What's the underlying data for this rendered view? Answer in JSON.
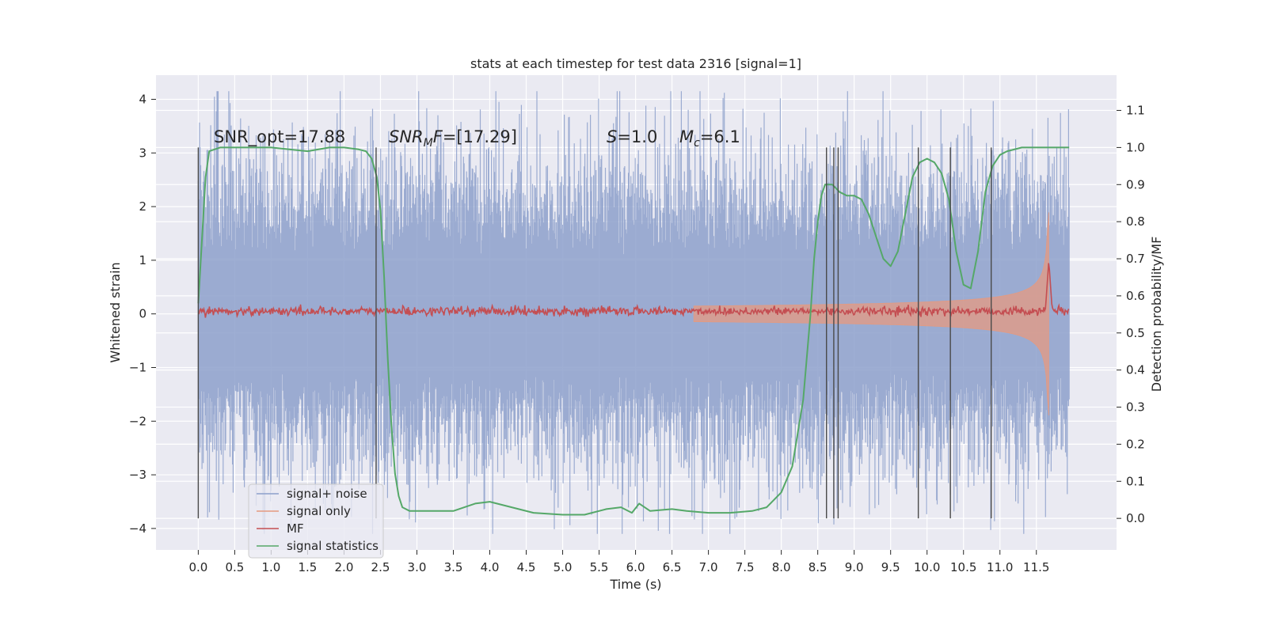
{
  "chart_data": {
    "type": "line",
    "title": "stats at each timestep for test data 2316 [signal=1]",
    "xlabel": "Time (s)",
    "ylabel": "Whitened strain",
    "y2label": "Detection probability/MF",
    "xlim": [
      -0.58,
      12.6
    ],
    "ylim": [
      -4.4,
      4.45
    ],
    "y2lim": [
      -0.085,
      1.195
    ],
    "xticks": [
      0.0,
      0.5,
      1.0,
      1.5,
      2.0,
      2.5,
      3.0,
      3.5,
      4.0,
      4.5,
      5.0,
      5.5,
      6.0,
      6.5,
      7.0,
      7.5,
      8.0,
      8.5,
      9.0,
      9.5,
      10.0,
      10.5,
      11.0,
      11.5
    ],
    "xtick_labels": [
      "0.0",
      "0.5",
      "1.0",
      "1.5",
      "2.0",
      "2.5",
      "3.0",
      "3.5",
      "4.0",
      "4.5",
      "5.0",
      "5.5",
      "6.0",
      "6.5",
      "7.0",
      "7.5",
      "8.0",
      "8.5",
      "9.0",
      "9.5",
      "10.0",
      "10.5",
      "11.0",
      "11.5"
    ],
    "yticks": [
      -4,
      -3,
      -2,
      -1,
      0,
      1,
      2,
      3,
      4
    ],
    "ytick_labels": [
      "−4",
      "−3",
      "−2",
      "−1",
      "0",
      "1",
      "2",
      "3",
      "4"
    ],
    "y2ticks": [
      0.0,
      0.1,
      0.2,
      0.3,
      0.4,
      0.5,
      0.6,
      0.7,
      0.8,
      0.9,
      1.0,
      1.1
    ],
    "y2tick_labels": [
      "0.0",
      "0.1",
      "0.2",
      "0.3",
      "0.4",
      "0.5",
      "0.6",
      "0.7",
      "0.8",
      "0.9",
      "1.0",
      "1.1"
    ],
    "grid": true,
    "legend_position": "bottom-left",
    "annotations": {
      "snr_opt": "SNR_opt=17.88",
      "snr_mf_sym": "SNR",
      "snr_mf_sub": "M",
      "snr_mf_sym2": "F",
      "snr_mf_val": "=[17.29]",
      "s_sym": "S",
      "s_val": "=1.0",
      "mc_sym": "M",
      "mc_sub": "c",
      "mc_val": "=6.1"
    },
    "series": [
      {
        "name": "signal+ noise",
        "color": "#8da0cb",
        "kind": "noise",
        "t_start": 0.0,
        "t_end": 11.95,
        "sigma": 1.05
      },
      {
        "name": "signal only",
        "color": "#e59a80",
        "kind": "chirp",
        "t_start": 6.8,
        "t_merge": 11.67,
        "amp_start": 0.02,
        "amp_peak": 2.1
      },
      {
        "name": "MF",
        "color": "#c44e52",
        "kind": "mf",
        "t_start": 0.0,
        "t_end": 11.95,
        "baseline": 0.05,
        "peak_t": 11.67,
        "peak_y": 1.0
      },
      {
        "name": "signal statistics",
        "color": "#55a868",
        "kind": "stat",
        "axis": "right",
        "x": [
          0.0,
          0.05,
          0.1,
          0.15,
          0.3,
          0.6,
          1.0,
          1.5,
          1.8,
          2.0,
          2.2,
          2.3,
          2.38,
          2.45,
          2.5,
          2.55,
          2.6,
          2.65,
          2.7,
          2.75,
          2.8,
          2.9,
          3.0,
          3.2,
          3.5,
          3.8,
          4.0,
          4.3,
          4.6,
          5.0,
          5.3,
          5.6,
          5.8,
          5.95,
          6.05,
          6.2,
          6.5,
          6.7,
          7.0,
          7.3,
          7.6,
          7.8,
          8.0,
          8.15,
          8.3,
          8.4,
          8.45,
          8.5,
          8.55,
          8.6,
          8.7,
          8.8,
          8.9,
          9.0,
          9.1,
          9.2,
          9.3,
          9.4,
          9.5,
          9.6,
          9.7,
          9.8,
          9.9,
          10.0,
          10.1,
          10.2,
          10.3,
          10.4,
          10.5,
          10.6,
          10.7,
          10.8,
          10.9,
          11.0,
          11.1,
          11.3,
          11.6,
          11.95
        ],
        "y": [
          0.58,
          0.75,
          0.92,
          0.99,
          1.0,
          1.0,
          1.0,
          0.99,
          1.0,
          1.0,
          0.995,
          0.99,
          0.97,
          0.92,
          0.83,
          0.65,
          0.43,
          0.25,
          0.12,
          0.06,
          0.03,
          0.02,
          0.02,
          0.02,
          0.02,
          0.04,
          0.045,
          0.03,
          0.015,
          0.01,
          0.01,
          0.025,
          0.03,
          0.015,
          0.04,
          0.02,
          0.025,
          0.02,
          0.015,
          0.015,
          0.02,
          0.03,
          0.07,
          0.14,
          0.32,
          0.55,
          0.7,
          0.8,
          0.87,
          0.9,
          0.9,
          0.88,
          0.87,
          0.87,
          0.86,
          0.82,
          0.76,
          0.7,
          0.68,
          0.72,
          0.82,
          0.92,
          0.96,
          0.97,
          0.96,
          0.93,
          0.86,
          0.72,
          0.63,
          0.62,
          0.72,
          0.88,
          0.95,
          0.98,
          0.99,
          1.0,
          1.0,
          1.0
        ]
      }
    ],
    "vlines": [
      0.0,
      2.44,
      8.62,
      8.72,
      8.78,
      9.88,
      10.32,
      10.88
    ]
  }
}
